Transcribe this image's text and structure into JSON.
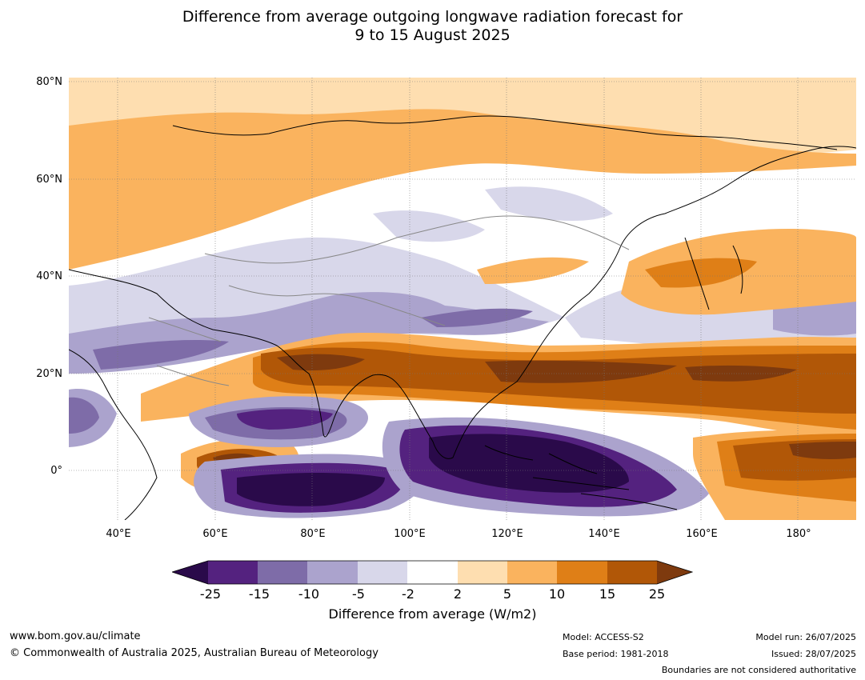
{
  "title": {
    "line1": "Difference from average outgoing longwave radiation forecast for",
    "line2": "9 to 15 August 2025"
  },
  "map": {
    "lat_labels": [
      "80°N",
      "60°N",
      "40°N",
      "20°N",
      "0°"
    ],
    "lon_labels": [
      "40°E",
      "60°E",
      "80°E",
      "100°E",
      "120°E",
      "140°E",
      "160°E",
      "180°"
    ]
  },
  "colorbar": {
    "ticks": [
      "-25",
      "-15",
      "-10",
      "-5",
      "-2",
      "2",
      "5",
      "10",
      "15",
      "25"
    ],
    "label": "Difference from average (W/m2)",
    "colors": [
      "#2a0a4a",
      "#54227f",
      "#7e6ca8",
      "#aba3cd",
      "#d8d7ea",
      "#ffffff",
      "#fedeb0",
      "#fab35e",
      "#df7f17",
      "#b15707",
      "#7e3a0e"
    ]
  },
  "footer": {
    "website": "www.bom.gov.au/climate",
    "copyright": "© Commonwealth of Australia 2025, Australian Bureau of Meteorology",
    "model": "Model: ACCESS-S2",
    "base_period": "Base period: 1981-2018",
    "model_run": "Model run: 26/07/2025",
    "issued": "Issued: 28/07/2025",
    "disclaimer": "Boundaries are not considered authoritative"
  }
}
